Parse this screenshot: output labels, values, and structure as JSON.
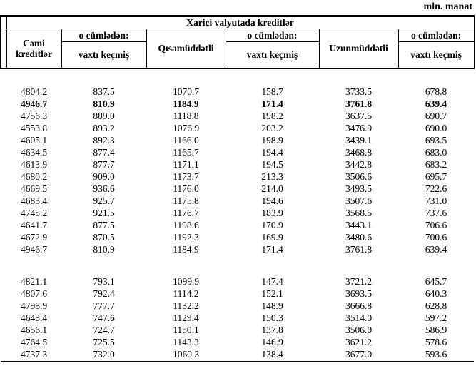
{
  "unit_label": "mln. manat",
  "colors": {
    "background": "#ffffff",
    "text": "#000000",
    "border": "#000000"
  },
  "table": {
    "title": "Xarici valyutada  kreditlər",
    "header": {
      "total_credits": "Cəmi kreditlər",
      "including": "o cümlədən:",
      "overdue": "vaxtı keçmiş",
      "short_term": "Qısamüddətli",
      "long_term": "Uzunmüddətli"
    },
    "columns_semantic": [
      "total-credits",
      "total-overdue",
      "short-term",
      "short-term-overdue",
      "long-term",
      "long-term-overdue"
    ],
    "sections": [
      {
        "rows": [
          {
            "bold": false,
            "values": [
              "4804.2",
              "837.5",
              "1070.7",
              "158.7",
              "3733.5",
              "678.8"
            ]
          },
          {
            "bold": true,
            "values": [
              "4946.7",
              "810.9",
              "1184.9",
              "171.4",
              "3761.8",
              "639.4"
            ]
          },
          {
            "bold": false,
            "values": [
              "4756.3",
              "889.0",
              "1118.8",
              "198.2",
              "3637.5",
              "690.7"
            ]
          },
          {
            "bold": false,
            "values": [
              "4553.8",
              "893.2",
              "1076.9",
              "203.2",
              "3476.9",
              "690.0"
            ]
          },
          {
            "bold": false,
            "values": [
              "4605.1",
              "892.3",
              "1166.0",
              "198.9",
              "3439.1",
              "693.5"
            ]
          },
          {
            "bold": false,
            "values": [
              "4634.5",
              "877.4",
              "1165.7",
              "194.4",
              "3468.8",
              "683.0"
            ]
          },
          {
            "bold": false,
            "values": [
              "4613.9",
              "877.7",
              "1171.1",
              "194.5",
              "3442.8",
              "683.2"
            ]
          },
          {
            "bold": false,
            "values": [
              "4680.2",
              "909.0",
              "1173.7",
              "213.3",
              "3506.6",
              "695.7"
            ]
          },
          {
            "bold": false,
            "values": [
              "4669.5",
              "936.6",
              "1176.0",
              "214.0",
              "3493.5",
              "722.6"
            ]
          },
          {
            "bold": false,
            "values": [
              "4683.4",
              "925.7",
              "1175.8",
              "194.6",
              "3507.6",
              "731.0"
            ]
          },
          {
            "bold": false,
            "values": [
              "4745.2",
              "921.5",
              "1176.7",
              "183.9",
              "3568.5",
              "737.6"
            ]
          },
          {
            "bold": false,
            "values": [
              "4641.7",
              "877.5",
              "1198.6",
              "170.9",
              "3443.1",
              "706.6"
            ]
          },
          {
            "bold": false,
            "values": [
              "4672.9",
              "870.5",
              "1192.3",
              "169.9",
              "3480.6",
              "700.6"
            ]
          },
          {
            "bold": false,
            "values": [
              "4946.7",
              "810.9",
              "1184.9",
              "171.4",
              "3761.8",
              "639.4"
            ]
          }
        ]
      },
      {
        "rows": [
          {
            "bold": false,
            "values": [
              "4821.1",
              "793.1",
              "1099.9",
              "147.4",
              "3721.2",
              "645.7"
            ]
          },
          {
            "bold": false,
            "values": [
              "4807.6",
              "792.4",
              "1114.2",
              "152.1",
              "3693.5",
              "640.3"
            ]
          },
          {
            "bold": false,
            "values": [
              "4798.9",
              "777.7",
              "1132.2",
              "148.9",
              "3666.8",
              "628.8"
            ]
          },
          {
            "bold": false,
            "values": [
              "4643.4",
              "747.6",
              "1129.4",
              "150.3",
              "3514.0",
              "597.2"
            ]
          },
          {
            "bold": false,
            "values": [
              "4656.1",
              "724.7",
              "1150.1",
              "137.8",
              "3506.0",
              "586.9"
            ]
          },
          {
            "bold": false,
            "values": [
              "4764.5",
              "725.5",
              "1143.3",
              "146.9",
              "3621.2",
              "578.6"
            ]
          },
          {
            "bold": false,
            "values": [
              "4737.3",
              "732.0",
              "1060.3",
              "138.4",
              "3677.0",
              "593.6"
            ]
          }
        ]
      }
    ]
  }
}
